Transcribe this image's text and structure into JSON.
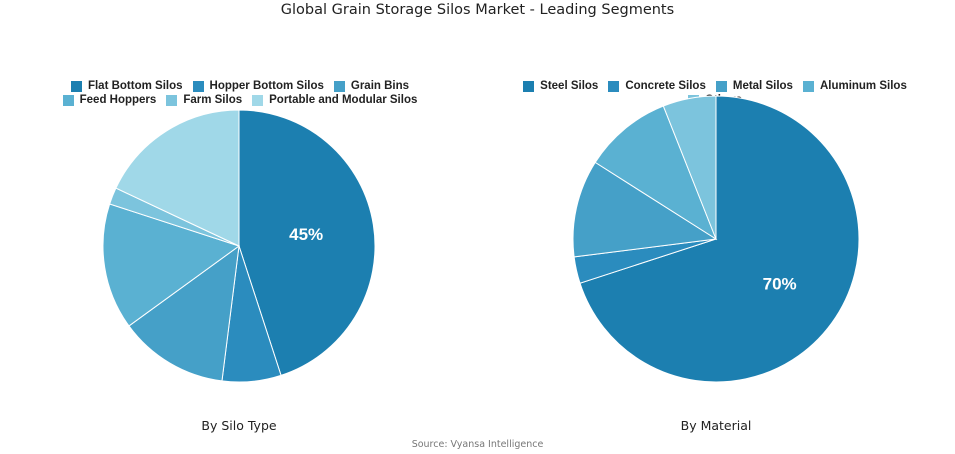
{
  "title": "Global Grain Storage Silos Market - Leading Segments",
  "source": "Source: Vyansa Intelligence",
  "chart_data": [
    {
      "type": "pie",
      "subtitle": "By Silo Type",
      "labels": [
        "Flat Bottom Silos",
        "Hopper Bottom Silos",
        "Grain Bins",
        "Feed Hoppers",
        "Farm Silos",
        "Portable and Modular Silos"
      ],
      "values": [
        45,
        7,
        13,
        15,
        2,
        18
      ],
      "colors": [
        "#1c7fb0",
        "#2b8cbe",
        "#45a0c8",
        "#5ab1d2",
        "#7cc4dd",
        "#a0d8e8"
      ],
      "value_labels": [
        "45%",
        "",
        "",
        "",
        "",
        ""
      ],
      "legend": "top"
    },
    {
      "type": "pie",
      "subtitle": "By Material",
      "labels": [
        "Steel Silos",
        "Concrete Silos",
        "Metal Silos",
        "Aluminum Silos",
        "Others"
      ],
      "values": [
        70,
        3,
        11,
        10,
        6
      ],
      "colors": [
        "#1c7fb0",
        "#2b8cbe",
        "#45a0c8",
        "#5ab1d2",
        "#7cc4dd"
      ],
      "value_labels": [
        "70%",
        "",
        "",
        "",
        ""
      ],
      "legend": "top"
    }
  ]
}
